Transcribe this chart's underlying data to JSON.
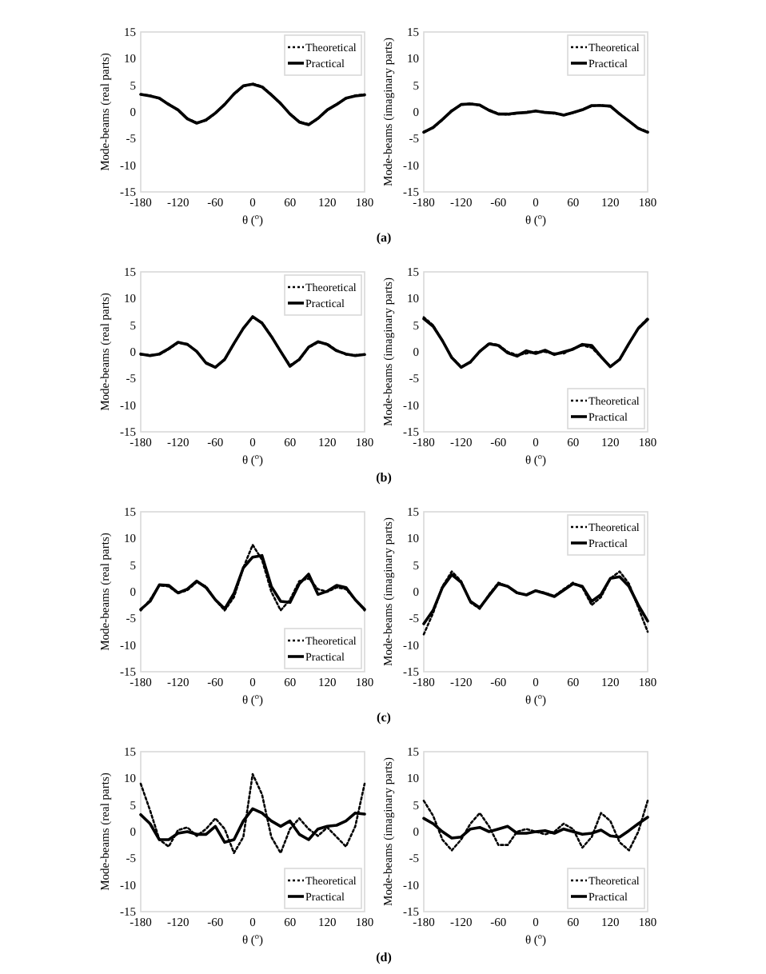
{
  "chart_data": [
    {
      "type": "line",
      "ylabel": "Mode-beams (real parts)",
      "xlabel": "θ ($^{o}$)",
      "annotations": [
        "(a)"
      ],
      "xlim": [
        -180,
        180
      ],
      "xticks": [
        -180,
        -120,
        -60,
        0,
        60,
        120,
        180
      ],
      "ylim": [
        -15,
        15
      ],
      "yticks": [
        -15,
        -10,
        -5,
        0,
        5,
        10,
        15
      ],
      "legend": "top right",
      "grid": false,
      "x": [
        -180,
        -165,
        -150,
        -135,
        -120,
        -105,
        -90,
        -75,
        -60,
        -45,
        -30,
        -15,
        0,
        15,
        30,
        45,
        60,
        75,
        90,
        105,
        120,
        135,
        150,
        165,
        180
      ],
      "series": [
        {
          "name": "Theoretical",
          "color": "#000000",
          "line_style": "dotted",
          "values": [
            3.3,
            3.1,
            2.5,
            1.5,
            0.3,
            -1.2,
            -2.0,
            -1.6,
            -0.3,
            1.5,
            3.3,
            4.8,
            5.3,
            4.8,
            3.3,
            1.5,
            -0.3,
            -1.8,
            -2.3,
            -1.3,
            0.3,
            1.5,
            2.5,
            3.1,
            3.3
          ]
        },
        {
          "name": "Practical",
          "color": "#000000",
          "line_style": "solid",
          "values": [
            3.3,
            3.0,
            2.6,
            1.4,
            0.4,
            -1.3,
            -2.1,
            -1.5,
            -0.2,
            1.4,
            3.4,
            4.9,
            5.2,
            4.7,
            3.2,
            1.6,
            -0.4,
            -1.9,
            -2.4,
            -1.2,
            0.4,
            1.4,
            2.6,
            3.0,
            3.2
          ]
        }
      ]
    },
    {
      "type": "line",
      "ylabel": "Mode-beams (imaginary parts)",
      "xlabel": "θ ($^{o}$)",
      "xlim": [
        -180,
        180
      ],
      "xticks": [
        -180,
        -120,
        -60,
        0,
        60,
        120,
        180
      ],
      "ylim": [
        -15,
        15
      ],
      "yticks": [
        -15,
        -10,
        -5,
        0,
        5,
        10,
        15
      ],
      "legend": "top right",
      "grid": false,
      "x": [
        -180,
        -165,
        -150,
        -135,
        -120,
        -105,
        -90,
        -75,
        -60,
        -45,
        -30,
        -15,
        0,
        15,
        30,
        45,
        60,
        75,
        90,
        105,
        120,
        135,
        150,
        165,
        180
      ],
      "series": [
        {
          "name": "Theoretical",
          "color": "#000000",
          "line_style": "dotted",
          "values": [
            -3.7,
            -3.0,
            -1.5,
            0.3,
            1.3,
            1.6,
            1.2,
            0.4,
            -0.3,
            -0.5,
            -0.3,
            0,
            0.1,
            0,
            -0.3,
            -0.5,
            -0.2,
            0.5,
            1.1,
            1.3,
            1.0,
            -0.3,
            -1.8,
            -3.0,
            -3.7
          ]
        },
        {
          "name": "Practical",
          "color": "#000000",
          "line_style": "solid",
          "values": [
            -3.8,
            -2.9,
            -1.4,
            0.2,
            1.4,
            1.5,
            1.3,
            0.3,
            -0.4,
            -0.4,
            -0.2,
            -0.1,
            0.2,
            -0.1,
            -0.2,
            -0.6,
            -0.1,
            0.4,
            1.2,
            1.2,
            1.1,
            -0.4,
            -1.7,
            -3.1,
            -3.8
          ]
        }
      ]
    },
    {
      "type": "line",
      "ylabel": "Mode-beams (real parts)",
      "xlabel": "θ ($^{o}$)",
      "annotations": [
        "(b)"
      ],
      "xlim": [
        -180,
        180
      ],
      "xticks": [
        -180,
        -120,
        -60,
        0,
        60,
        120,
        180
      ],
      "ylim": [
        -15,
        15
      ],
      "yticks": [
        -15,
        -10,
        -5,
        0,
        5,
        10,
        15
      ],
      "legend": "top right",
      "grid": false,
      "x": [
        -180,
        -165,
        -150,
        -135,
        -120,
        -105,
        -90,
        -75,
        -60,
        -45,
        -30,
        -15,
        0,
        15,
        30,
        45,
        60,
        75,
        90,
        105,
        120,
        135,
        150,
        165,
        180
      ],
      "series": [
        {
          "name": "Theoretical",
          "color": "#000000",
          "line_style": "dotted",
          "values": [
            -0.5,
            -0.6,
            -0.5,
            0.5,
            1.7,
            1.5,
            0,
            -2.0,
            -2.8,
            -1.5,
            1.5,
            4.5,
            6.5,
            5.5,
            3.0,
            0,
            -2.5,
            -1.5,
            0.8,
            1.8,
            1.5,
            0.3,
            -0.5,
            -0.6,
            -0.5
          ]
        },
        {
          "name": "Practical",
          "color": "#000000",
          "line_style": "solid",
          "values": [
            -0.4,
            -0.7,
            -0.4,
            0.6,
            1.8,
            1.4,
            0.1,
            -2.1,
            -2.9,
            -1.4,
            1.6,
            4.4,
            6.6,
            5.4,
            2.9,
            0.1,
            -2.7,
            -1.4,
            0.9,
            1.9,
            1.4,
            0.2,
            -0.4,
            -0.7,
            -0.5
          ]
        }
      ]
    },
    {
      "type": "line",
      "ylabel": "Mode-beams (imaginary parts)",
      "xlabel": "θ ($^{o}$)",
      "xlim": [
        -180,
        180
      ],
      "xticks": [
        -180,
        -120,
        -60,
        0,
        60,
        120,
        180
      ],
      "ylim": [
        -15,
        15
      ],
      "yticks": [
        -15,
        -10,
        -5,
        0,
        5,
        10,
        15
      ],
      "legend": "bottom right",
      "grid": false,
      "x": [
        -180,
        -165,
        -150,
        -135,
        -120,
        -105,
        -90,
        -75,
        -60,
        -45,
        -30,
        -15,
        0,
        15,
        30,
        45,
        60,
        75,
        90,
        105,
        120,
        135,
        150,
        165,
        180
      ],
      "series": [
        {
          "name": "Theoretical",
          "color": "#000000",
          "line_style": "dotted",
          "values": [
            6.5,
            5.0,
            2.0,
            -1.0,
            -2.8,
            -2.0,
            0,
            1.6,
            1.3,
            0,
            -0.6,
            -0.3,
            0,
            0,
            -0.3,
            -0.3,
            0.6,
            1.2,
            0.8,
            -1.0,
            -2.7,
            -1.5,
            1.5,
            4.5,
            6.3
          ]
        },
        {
          "name": "Practical",
          "color": "#000000",
          "line_style": "solid",
          "values": [
            6.2,
            4.8,
            2.1,
            -1.1,
            -2.9,
            -1.9,
            0.1,
            1.5,
            1.2,
            -0.2,
            -0.8,
            0.2,
            -0.3,
            0.3,
            -0.5,
            0,
            0.5,
            1.4,
            1.2,
            -0.9,
            -2.8,
            -1.4,
            1.6,
            4.4,
            6.1
          ]
        }
      ]
    },
    {
      "type": "line",
      "ylabel": "Mode-beams (real parts)",
      "xlabel": "θ ($^{o}$)",
      "annotations": [
        "(c)"
      ],
      "xlim": [
        -180,
        180
      ],
      "xticks": [
        -180,
        -120,
        -60,
        0,
        60,
        120,
        180
      ],
      "ylim": [
        -15,
        15
      ],
      "yticks": [
        -15,
        -10,
        -5,
        0,
        5,
        10,
        15
      ],
      "legend": "bottom right",
      "grid": false,
      "x": [
        -180,
        -165,
        -150,
        -135,
        -120,
        -105,
        -90,
        -75,
        -60,
        -45,
        -30,
        -15,
        0,
        15,
        30,
        45,
        60,
        75,
        90,
        105,
        120,
        135,
        150,
        165,
        180
      ],
      "series": [
        {
          "name": "Theoretical",
          "color": "#000000",
          "line_style": "dotted",
          "values": [
            -3.5,
            -1.5,
            1.2,
            1.0,
            -0.3,
            0.3,
            1.8,
            1.0,
            -1.5,
            -3.5,
            -1.0,
            4.5,
            8.8,
            6.0,
            0,
            -3.5,
            -1.5,
            2.0,
            2.5,
            0.5,
            0,
            0.8,
            0.5,
            -1.5,
            -3.5
          ]
        },
        {
          "name": "Practical",
          "color": "#000000",
          "line_style": "solid",
          "values": [
            -3.3,
            -1.8,
            1.3,
            1.2,
            -0.2,
            0.5,
            2.0,
            0.8,
            -1.5,
            -3.2,
            -0.3,
            4.5,
            6.5,
            6.8,
            1.0,
            -1.8,
            -2.0,
            1.5,
            3.3,
            -0.5,
            0.1,
            1.2,
            0.8,
            -1.5,
            -3.3
          ]
        }
      ]
    },
    {
      "type": "line",
      "ylabel": "Mode-beams (imaginary parts)",
      "xlabel": "θ ($^{o}$)",
      "xlim": [
        -180,
        180
      ],
      "xticks": [
        -180,
        -120,
        -60,
        0,
        60,
        120,
        180
      ],
      "ylim": [
        -15,
        15
      ],
      "yticks": [
        -15,
        -10,
        -5,
        0,
        5,
        10,
        15
      ],
      "legend": "top right",
      "grid": false,
      "x": [
        -180,
        -165,
        -150,
        -135,
        -120,
        -105,
        -90,
        -75,
        -60,
        -45,
        -30,
        -15,
        0,
        15,
        30,
        45,
        60,
        75,
        90,
        105,
        120,
        135,
        150,
        165,
        180
      ],
      "series": [
        {
          "name": "Theoretical",
          "color": "#000000",
          "line_style": "dotted",
          "values": [
            -8.0,
            -4.0,
            1.0,
            3.8,
            2.0,
            -2.0,
            -3.2,
            -0.5,
            1.7,
            1.0,
            -0.3,
            -0.5,
            0.2,
            -0.2,
            -0.8,
            0.5,
            1.7,
            0.8,
            -2.5,
            -1.0,
            2.5,
            3.8,
            1.5,
            -3.0,
            -7.5
          ]
        },
        {
          "name": "Practical",
          "color": "#000000",
          "line_style": "solid",
          "values": [
            -6.0,
            -3.5,
            0.8,
            3.2,
            1.8,
            -1.8,
            -3.0,
            -0.7,
            1.5,
            1.0,
            -0.2,
            -0.6,
            0.2,
            -0.3,
            -0.9,
            0.3,
            1.5,
            1.0,
            -1.8,
            -0.5,
            2.5,
            2.8,
            1.0,
            -2.5,
            -5.5
          ]
        }
      ]
    },
    {
      "type": "line",
      "ylabel": "Mode-beams (real parts)",
      "xlabel": "θ ($^{o}$)",
      "annotations": [
        "(d)"
      ],
      "xlim": [
        -180,
        180
      ],
      "xticks": [
        -180,
        -120,
        -60,
        0,
        60,
        120,
        180
      ],
      "ylim": [
        -15,
        15
      ],
      "yticks": [
        -15,
        -10,
        -5,
        0,
        5,
        10,
        15
      ],
      "legend": "bottom right",
      "grid": false,
      "x": [
        -180,
        -165,
        -150,
        -135,
        -120,
        -105,
        -90,
        -75,
        -60,
        -45,
        -30,
        -15,
        0,
        15,
        30,
        45,
        60,
        75,
        90,
        105,
        120,
        135,
        150,
        165,
        180
      ],
      "series": [
        {
          "name": "Theoretical",
          "color": "#000000",
          "line_style": "dotted",
          "values": [
            9.0,
            4.0,
            -1.5,
            -2.8,
            0.3,
            0.8,
            -0.8,
            0.5,
            2.5,
            0.5,
            -4.0,
            -1.0,
            10.8,
            7.0,
            -1.0,
            -4.0,
            0.5,
            2.5,
            0.5,
            -0.8,
            0.8,
            -1.0,
            -2.8,
            1.0,
            9.0
          ]
        },
        {
          "name": "Practical",
          "color": "#000000",
          "line_style": "solid",
          "values": [
            3.2,
            1.5,
            -1.5,
            -1.5,
            -0.3,
            0,
            -0.5,
            -0.5,
            1.0,
            -2.0,
            -1.5,
            2.0,
            4.3,
            3.5,
            2.0,
            1.0,
            2.0,
            -0.5,
            -1.5,
            0.5,
            1.0,
            1.2,
            2.0,
            3.5,
            3.3
          ]
        }
      ]
    },
    {
      "type": "line",
      "ylabel": "Mode-beams (imaginary parts)",
      "xlabel": "θ ($^{o}$)",
      "xlim": [
        -180,
        180
      ],
      "xticks": [
        -180,
        -120,
        -60,
        0,
        60,
        120,
        180
      ],
      "ylim": [
        -15,
        15
      ],
      "yticks": [
        -15,
        -10,
        -5,
        0,
        5,
        10,
        15
      ],
      "legend": "bottom right",
      "grid": false,
      "x": [
        -180,
        -165,
        -150,
        -135,
        -120,
        -105,
        -90,
        -75,
        -60,
        -45,
        -30,
        -15,
        0,
        15,
        30,
        45,
        60,
        75,
        90,
        105,
        120,
        135,
        150,
        165,
        180
      ],
      "series": [
        {
          "name": "Theoretical",
          "color": "#000000",
          "line_style": "dotted",
          "values": [
            5.8,
            3.0,
            -1.5,
            -3.5,
            -1.5,
            1.5,
            3.5,
            1.0,
            -2.5,
            -2.5,
            0,
            0.5,
            0,
            -0.5,
            0,
            1.5,
            0.5,
            -3.0,
            -1.0,
            3.5,
            2.0,
            -2.0,
            -3.5,
            0,
            5.8
          ]
        },
        {
          "name": "Practical",
          "color": "#000000",
          "line_style": "solid",
          "values": [
            2.5,
            1.5,
            0,
            -1.2,
            -1.0,
            0.5,
            0.8,
            0,
            0.5,
            1.0,
            -0.3,
            -0.3,
            0,
            0.2,
            -0.3,
            0.5,
            0,
            -0.5,
            -0.3,
            0.3,
            -0.8,
            -1.0,
            0.2,
            1.5,
            2.7
          ]
        }
      ]
    }
  ]
}
